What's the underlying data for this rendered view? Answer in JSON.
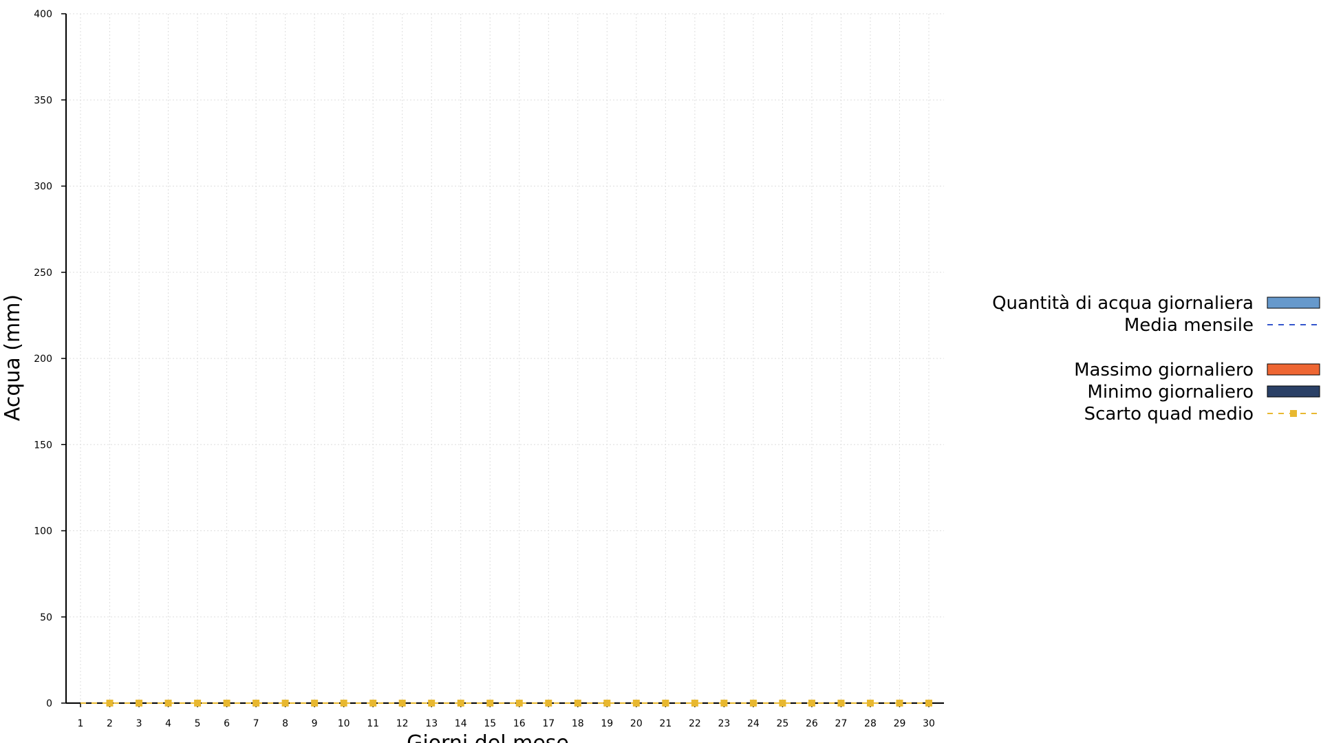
{
  "chart_data": {
    "type": "bar",
    "title": "",
    "xlabel": "Giorni del mese",
    "ylabel": "Acqua (mm)",
    "categories": [
      "1",
      "2",
      "3",
      "4",
      "5",
      "6",
      "7",
      "8",
      "9",
      "10",
      "11",
      "12",
      "13",
      "14",
      "15",
      "16",
      "17",
      "18",
      "19",
      "20",
      "21",
      "22",
      "23",
      "24",
      "25",
      "26",
      "27",
      "28",
      "29",
      "30"
    ],
    "ylim": [
      0,
      400
    ],
    "yticks": [
      0,
      50,
      100,
      150,
      200,
      250,
      300,
      350,
      400
    ],
    "grid": true,
    "legend_position": "right",
    "series": [
      {
        "name": "Quantità di acqua giornaliera",
        "kind": "bar",
        "color": "#6699cc",
        "values": [
          0,
          0,
          0,
          0,
          0,
          0,
          0,
          0,
          0,
          0,
          0,
          0,
          0,
          0,
          0,
          0,
          0,
          0,
          0,
          0,
          0,
          0,
          0,
          0,
          0,
          0,
          0,
          0,
          0,
          0
        ]
      },
      {
        "name": "Media mensile",
        "kind": "dashed-line",
        "color": "#3355cc",
        "values": [
          0,
          0,
          0,
          0,
          0,
          0,
          0,
          0,
          0,
          0,
          0,
          0,
          0,
          0,
          0,
          0,
          0,
          0,
          0,
          0,
          0,
          0,
          0,
          0,
          0,
          0,
          0,
          0,
          0,
          0
        ]
      },
      {
        "name": "Massimo giornaliero",
        "kind": "bar",
        "color": "#ee6633",
        "values": [
          0,
          0,
          0,
          0,
          0,
          0,
          0,
          0,
          0,
          0,
          0,
          0,
          0,
          0,
          0,
          0,
          0,
          0,
          0,
          0,
          0,
          0,
          0,
          0,
          0,
          0,
          0,
          0,
          0,
          0
        ]
      },
      {
        "name": "Minimo giornaliero",
        "kind": "bar",
        "color": "#2a4066",
        "values": [
          0,
          0,
          0,
          0,
          0,
          0,
          0,
          0,
          0,
          0,
          0,
          0,
          0,
          0,
          0,
          0,
          0,
          0,
          0,
          0,
          0,
          0,
          0,
          0,
          0,
          0,
          0,
          0,
          0,
          0
        ]
      },
      {
        "name": "Scarto quad medio",
        "kind": "dashed-line-markers",
        "color": "#e8b830",
        "values": [
          0,
          0,
          0,
          0,
          0,
          0,
          0,
          0,
          0,
          0,
          0,
          0,
          0,
          0,
          0,
          0,
          0,
          0,
          0,
          0,
          0,
          0,
          0,
          0,
          0,
          0,
          0,
          0,
          0,
          0
        ]
      }
    ]
  }
}
